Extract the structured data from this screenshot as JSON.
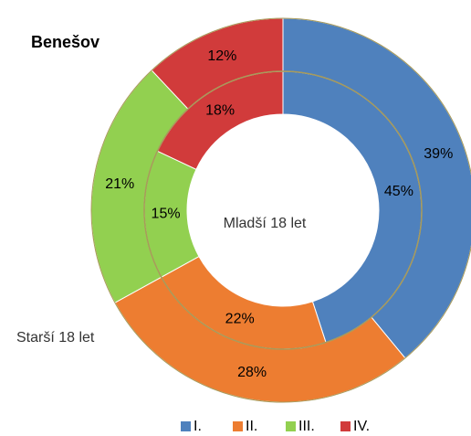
{
  "chart_data": {
    "type": "donut",
    "title": "Benešov",
    "categories": [
      "I.",
      "II.",
      "III.",
      "IV."
    ],
    "colors": [
      "#4f81bd",
      "#ed7d31",
      "#92d050",
      "#d13b3b"
    ],
    "series": [
      {
        "name": "Mladší 18 let",
        "values": [
          45,
          22,
          15,
          18
        ],
        "value_labels": [
          "45%",
          "22%",
          "15%",
          "18%"
        ]
      },
      {
        "name": "Starší 18 let",
        "values": [
          39,
          28,
          21,
          12
        ],
        "value_labels": [
          "39%",
          "28%",
          "21%",
          "12%"
        ]
      }
    ],
    "legend": "bottom"
  }
}
